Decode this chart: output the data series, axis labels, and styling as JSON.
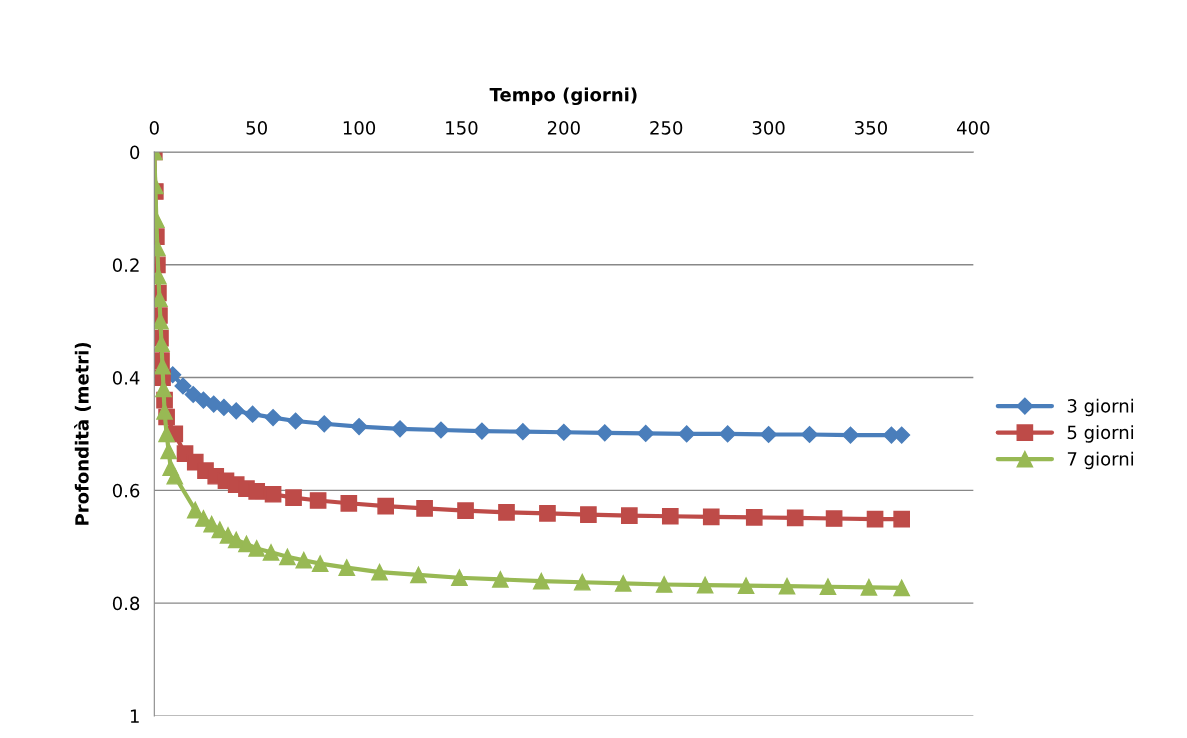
{
  "chart_data": {
    "type": "line",
    "xlabel": "Tempo (giorni)",
    "ylabel": "Profondità (metri)",
    "xlim": [
      0,
      400
    ],
    "xticks": [
      0,
      50,
      100,
      150,
      200,
      250,
      300,
      350,
      400
    ],
    "ylim": [
      1,
      0
    ],
    "yticks": [
      0,
      0.2,
      0.4,
      0.6,
      0.8,
      1
    ],
    "grid": "y",
    "legend": "right",
    "line_style": "solid",
    "series": [
      {
        "name": "3 giorni",
        "color": "#4a7ebb",
        "marker": "diamond",
        "x": [
          9,
          14,
          19,
          24,
          29,
          34,
          40,
          48,
          58,
          69,
          83,
          100,
          120,
          140,
          160,
          180,
          200,
          220,
          240,
          260,
          280,
          300,
          320,
          340,
          360,
          365
        ],
        "values": [
          0.395,
          0.415,
          0.43,
          0.44,
          0.447,
          0.453,
          0.459,
          0.465,
          0.471,
          0.477,
          0.482,
          0.487,
          0.491,
          0.493,
          0.495,
          0.496,
          0.497,
          0.498,
          0.499,
          0.5,
          0.5,
          0.501,
          0.501,
          0.502,
          0.502,
          0.502
        ]
      },
      {
        "name": "5 giorni",
        "color": "#be4b48",
        "marker": "square",
        "x": [
          0,
          0.5,
          1,
          1.5,
          2,
          2.5,
          3,
          3.5,
          4,
          5,
          6,
          10,
          15,
          20,
          25,
          30,
          35,
          40,
          45,
          50,
          58,
          68,
          80,
          95,
          113,
          132,
          152,
          172,
          192,
          212,
          232,
          252,
          272,
          293,
          313,
          332,
          352,
          365
        ],
        "values": [
          0,
          0.07,
          0.15,
          0.2,
          0.25,
          0.29,
          0.33,
          0.37,
          0.4,
          0.44,
          0.47,
          0.5,
          0.535,
          0.55,
          0.565,
          0.575,
          0.583,
          0.59,
          0.597,
          0.602,
          0.607,
          0.613,
          0.618,
          0.623,
          0.628,
          0.632,
          0.636,
          0.639,
          0.641,
          0.643,
          0.645,
          0.646,
          0.647,
          0.648,
          0.649,
          0.65,
          0.651,
          0.651
        ]
      },
      {
        "name": "7 giorni",
        "color": "#98b954",
        "marker": "triangle",
        "x": [
          0,
          0.5,
          1,
          1.5,
          2,
          2.5,
          3,
          3.5,
          4,
          4.5,
          5,
          6,
          7,
          8,
          10,
          20,
          24,
          28,
          32,
          36,
          40,
          45,
          50,
          57,
          65,
          73,
          81,
          94,
          110,
          129,
          149,
          169,
          189,
          209,
          229,
          249,
          269,
          289,
          309,
          329,
          349,
          365
        ],
        "values": [
          0,
          0.06,
          0.12,
          0.17,
          0.22,
          0.26,
          0.3,
          0.34,
          0.38,
          0.42,
          0.46,
          0.5,
          0.53,
          0.56,
          0.575,
          0.635,
          0.65,
          0.66,
          0.67,
          0.68,
          0.688,
          0.695,
          0.703,
          0.71,
          0.718,
          0.724,
          0.73,
          0.737,
          0.745,
          0.75,
          0.755,
          0.758,
          0.761,
          0.763,
          0.765,
          0.767,
          0.768,
          0.769,
          0.77,
          0.771,
          0.772,
          0.773
        ]
      }
    ]
  }
}
